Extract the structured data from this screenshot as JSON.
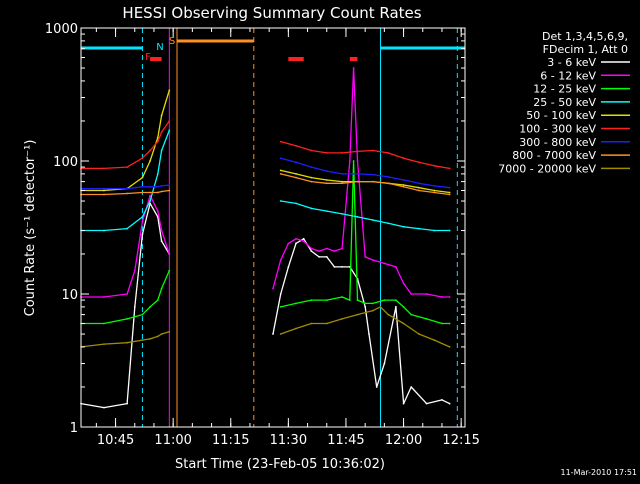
{
  "chart_data": {
    "type": "line",
    "title": "HESSI Observing Summary Count Rates",
    "xlabel": "Start Time (23-Feb-05 10:36:02)",
    "ylabel": "Count Rate (s⁻¹ detector⁻¹)",
    "y_scale": "log",
    "ylim": [
      1,
      1000
    ],
    "xlim": [
      "10:36",
      "12:16"
    ],
    "x_ticks": [
      "10:45",
      "11:00",
      "11:15",
      "11:30",
      "11:45",
      "12:00",
      "12:15"
    ],
    "y_ticks": [
      "1",
      "10",
      "100",
      "1000"
    ],
    "timestamp": "11-Mar-2010 17:51",
    "legend": {
      "position": "top-right",
      "header": [
        "Det 1,3,4,5,6,9,",
        "FDecim 1, Att 0"
      ]
    },
    "flags": [
      {
        "label": "F",
        "color": "#ff2020"
      },
      {
        "label": "N",
        "color": "#00e8ff"
      },
      {
        "label": "S",
        "color": "#ff9020"
      }
    ],
    "series": [
      {
        "name": "3 - 6 keV",
        "color": "#ffffff",
        "x": [
          "10:36",
          "10:42",
          "10:48",
          "10:50",
          "10:52",
          "10:54",
          "10:56",
          "10:57",
          "10:59",
          "11:22",
          "11:24",
          "11:26",
          "11:28",
          "11:30",
          "11:32",
          "11:34",
          "11:36",
          "11:38",
          "11:40",
          "11:42",
          "11:44",
          "11:46",
          "11:48",
          "11:50",
          "11:51",
          "11:53",
          "11:55",
          "11:58",
          "12:00",
          "12:02",
          "12:06",
          "12:10",
          "12:12"
        ],
        "y": [
          1.5,
          1.4,
          1.5,
          8,
          28,
          48,
          38,
          25,
          20,
          null,
          null,
          5,
          10,
          16,
          24,
          26,
          21,
          19,
          19,
          16,
          16,
          16,
          13,
          8,
          5,
          2,
          3,
          8,
          1.5,
          2,
          1.5,
          1.6,
          1.5
        ]
      },
      {
        "name": "6 - 12 keV",
        "color": "#ff00ff",
        "x": [
          "10:36",
          "10:42",
          "10:48",
          "10:50",
          "10:52",
          "10:54",
          "10:56",
          "10:57",
          "10:59",
          "11:22",
          "11:24",
          "11:26",
          "11:28",
          "11:30",
          "11:32",
          "11:34",
          "11:36",
          "11:38",
          "11:40",
          "11:42",
          "11:44",
          "11:46",
          "11:47",
          "11:48",
          "11:50",
          "11:52",
          "11:55",
          "11:58",
          "12:00",
          "12:02",
          "12:06",
          "12:10",
          "12:12"
        ],
        "y": [
          9.5,
          9.5,
          10,
          15,
          35,
          55,
          42,
          30,
          20,
          null,
          null,
          11,
          18,
          24,
          26,
          25,
          22,
          21,
          22,
          21,
          22,
          100,
          500,
          100,
          19,
          18,
          17,
          16,
          12,
          10,
          10,
          9.5,
          9.5
        ]
      },
      {
        "name": "12 - 25 keV",
        "color": "#00ff00",
        "x": [
          "10:36",
          "10:42",
          "10:48",
          "10:52",
          "10:54",
          "10:56",
          "10:57",
          "10:59",
          "11:22",
          "11:24",
          "11:28",
          "11:32",
          "11:36",
          "11:40",
          "11:44",
          "11:46",
          "11:47",
          "11:48",
          "11:50",
          "11:52",
          "11:55",
          "11:58",
          "12:00",
          "12:02",
          "12:06",
          "12:10",
          "12:12"
        ],
        "y": [
          6,
          6,
          6.5,
          7,
          8,
          9,
          11,
          15,
          null,
          null,
          8,
          8.5,
          9,
          9,
          9.5,
          9,
          100,
          9,
          8.5,
          8.5,
          9,
          9,
          8,
          7,
          6.5,
          6,
          6
        ]
      },
      {
        "name": "25 - 50 keV",
        "color": "#00ffff",
        "x": [
          "10:36",
          "10:42",
          "10:48",
          "10:52",
          "10:54",
          "10:56",
          "10:57",
          "10:59",
          "11:22",
          "11:24",
          "11:28",
          "11:32",
          "11:36",
          "11:40",
          "11:44",
          "11:48",
          "11:52",
          "11:56",
          "12:00",
          "12:04",
          "12:08",
          "12:12"
        ],
        "y": [
          30,
          30,
          31,
          38,
          50,
          80,
          120,
          170,
          null,
          null,
          50,
          48,
          44,
          42,
          40,
          38,
          36,
          34,
          32,
          31,
          30,
          30
        ]
      },
      {
        "name": "50 - 100 keV",
        "color": "#e0e000",
        "x": [
          "10:36",
          "10:42",
          "10:48",
          "10:52",
          "10:54",
          "10:56",
          "10:57",
          "10:59",
          "11:22",
          "11:24",
          "11:28",
          "11:32",
          "11:36",
          "11:40",
          "11:44",
          "11:48",
          "11:52",
          "11:56",
          "12:00",
          "12:04",
          "12:08",
          "12:12"
        ],
        "y": [
          60,
          60,
          62,
          75,
          100,
          150,
          220,
          340,
          null,
          null,
          85,
          80,
          75,
          72,
          70,
          70,
          70,
          68,
          66,
          63,
          60,
          58
        ]
      },
      {
        "name": "100 - 300 keV",
        "color": "#ff2020",
        "x": [
          "10:36",
          "10:42",
          "10:48",
          "10:52",
          "10:54",
          "10:56",
          "10:57",
          "10:59",
          "11:22",
          "11:24",
          "11:28",
          "11:32",
          "11:36",
          "11:40",
          "11:44",
          "11:48",
          "11:52",
          "11:56",
          "12:00",
          "12:04",
          "12:08",
          "12:12"
        ],
        "y": [
          88,
          88,
          90,
          105,
          120,
          140,
          165,
          200,
          null,
          null,
          140,
          130,
          120,
          115,
          115,
          118,
          120,
          115,
          105,
          98,
          92,
          88
        ]
      },
      {
        "name": "300 - 800 keV",
        "color": "#1e1eff",
        "x": [
          "10:36",
          "10:42",
          "10:48",
          "10:52",
          "10:54",
          "10:56",
          "10:57",
          "10:59",
          "11:22",
          "11:24",
          "11:28",
          "11:32",
          "11:36",
          "11:40",
          "11:44",
          "11:48",
          "11:52",
          "11:56",
          "12:00",
          "12:04",
          "12:08",
          "12:12"
        ],
        "y": [
          62,
          62,
          62,
          64,
          64,
          64,
          65,
          66,
          null,
          null,
          105,
          98,
          90,
          84,
          80,
          80,
          79,
          76,
          72,
          68,
          65,
          63
        ]
      },
      {
        "name": "800 - 7000 keV",
        "color": "#ff9020",
        "x": [
          "10:36",
          "10:42",
          "10:48",
          "10:52",
          "10:54",
          "10:56",
          "10:57",
          "10:59",
          "11:22",
          "11:24",
          "11:28",
          "11:32",
          "11:36",
          "11:40",
          "11:44",
          "11:48",
          "11:52",
          "11:56",
          "12:00",
          "12:04",
          "12:08",
          "12:12"
        ],
        "y": [
          56,
          56,
          57,
          58,
          58,
          58,
          59,
          60,
          null,
          null,
          80,
          75,
          70,
          68,
          68,
          70,
          70,
          68,
          64,
          60,
          58,
          56
        ]
      },
      {
        "name": "7000 - 20000 keV",
        "color": "#a08c00",
        "x": [
          "10:36",
          "10:42",
          "10:48",
          "10:52",
          "10:54",
          "10:56",
          "10:57",
          "10:59",
          "11:22",
          "11:24",
          "11:28",
          "11:32",
          "11:36",
          "11:40",
          "11:44",
          "11:48",
          "11:52",
          "11:54",
          "11:56",
          "12:00",
          "12:04",
          "12:08",
          "12:12"
        ],
        "y": [
          4,
          4.2,
          4.3,
          4.5,
          4.6,
          4.8,
          5,
          5.2,
          null,
          null,
          5,
          5.5,
          6,
          6,
          6.5,
          7,
          7.5,
          8,
          7,
          6,
          5,
          4.5,
          4
        ]
      }
    ],
    "intervals": [
      {
        "kind": "N",
        "label": "night",
        "start": "10:36",
        "end": "10:52",
        "color": "#00e8ff"
      },
      {
        "kind": "N",
        "label": "night",
        "start": "11:54",
        "end": "12:16",
        "color": "#00e8ff"
      },
      {
        "kind": "S",
        "label": "SAA",
        "start": "11:01",
        "end": "11:21",
        "color": "#ff9020"
      },
      {
        "kind": "F",
        "label": "flare",
        "start": "10:54",
        "end": "10:57",
        "color": "#ff2020"
      },
      {
        "kind": "F",
        "label": "flare",
        "start": "11:30",
        "end": "11:34",
        "color": "#ff2020"
      },
      {
        "kind": "F",
        "label": "flare",
        "start": "11:46",
        "end": "11:48",
        "color": "#ff2020"
      }
    ],
    "vlines": [
      {
        "t": "10:52",
        "color": "#00e8ff",
        "dash": true
      },
      {
        "t": "10:59",
        "color": "#ff00ff",
        "dash": false
      },
      {
        "t": "11:01",
        "color": "#ff9020",
        "dash": false
      },
      {
        "t": "11:21",
        "color": "#ff9020",
        "dash": true
      },
      {
        "t": "11:54",
        "color": "#00e8ff",
        "dash": false
      },
      {
        "t": "12:14",
        "color": "#00e8ff",
        "dash": true
      }
    ]
  }
}
